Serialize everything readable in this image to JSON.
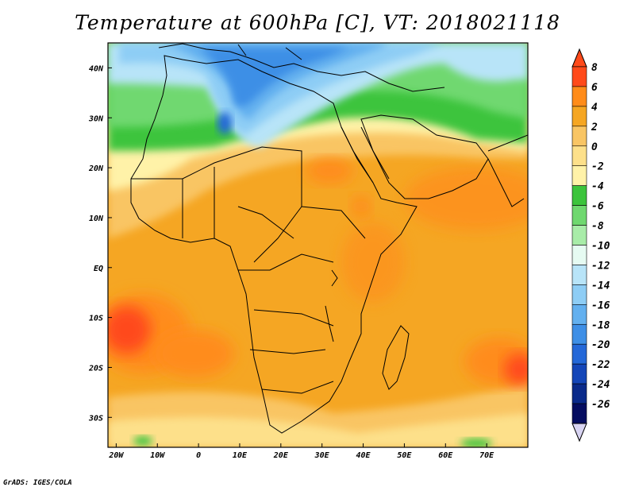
{
  "title": "Temperature at 600hPa [C], VT: 2018021118",
  "credit": "GrADS: IGES/COLA",
  "map": {
    "lon_range": [
      -22,
      80
    ],
    "lat_range": [
      -36,
      45
    ],
    "lon_ticks": [
      {
        "value": -20,
        "label": "20W"
      },
      {
        "value": -10,
        "label": "10W"
      },
      {
        "value": 0,
        "label": "0"
      },
      {
        "value": 10,
        "label": "10E"
      },
      {
        "value": 20,
        "label": "20E"
      },
      {
        "value": 30,
        "label": "30E"
      },
      {
        "value": 40,
        "label": "40E"
      },
      {
        "value": 50,
        "label": "50E"
      },
      {
        "value": 60,
        "label": "60E"
      },
      {
        "value": 70,
        "label": "70E"
      }
    ],
    "lat_ticks": [
      {
        "value": 40,
        "label": "40N"
      },
      {
        "value": 30,
        "label": "30N"
      },
      {
        "value": 20,
        "label": "20N"
      },
      {
        "value": 10,
        "label": "10N"
      },
      {
        "value": 0,
        "label": "EQ"
      },
      {
        "value": -10,
        "label": "10S"
      },
      {
        "value": -20,
        "label": "20S"
      },
      {
        "value": -30,
        "label": "30S"
      }
    ]
  },
  "colorbar": {
    "levels": [
      "8",
      "6",
      "4",
      "2",
      "0",
      "-2",
      "-4",
      "-6",
      "-8",
      "-10",
      "-12",
      "-14",
      "-16",
      "-18",
      "-20",
      "-22",
      "-24",
      "-26"
    ],
    "colors": [
      "#ff4a1a",
      "#ff8c1a",
      "#f5a623",
      "#f9c564",
      "#fde08a",
      "#fff2a8",
      "#3cc43c",
      "#6fd86f",
      "#a8eca8",
      "#e6fbf2",
      "#b8e4f8",
      "#8ecdf5",
      "#63b0ef",
      "#3e8fe6",
      "#2468d8",
      "#1446b8",
      "#0a2a8a",
      "#050d60"
    ]
  }
}
